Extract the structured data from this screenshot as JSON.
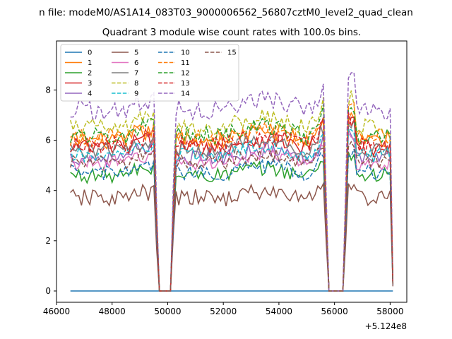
{
  "chart_data": {
    "type": "line",
    "suptitle": "n file: modeM0/AS1A14_083T03_9000006562_56807cztM0_level2_quad_clean",
    "title": "Quadrant 3 module wise count rates with 100.0s bins.",
    "xlabel": "",
    "ylabel": "",
    "x_offset_label": "+5.124e8",
    "x_offset": 512400000,
    "xlim": [
      46000,
      58600
    ],
    "ylim": [
      -0.45,
      9.95
    ],
    "xticks": [
      46000,
      48000,
      50000,
      52000,
      54000,
      56000,
      58000
    ],
    "xtick_labels": [
      "46000",
      "48000",
      "50000",
      "52000",
      "54000",
      "56000",
      "58000"
    ],
    "yticks": [
      0,
      2,
      4,
      6,
      8
    ],
    "ytick_labels": [
      "0",
      "2",
      "4",
      "6",
      "8"
    ],
    "x_range_data": [
      46500,
      58100
    ],
    "bin_size": 100,
    "gaps": [
      [
        49650,
        50200
      ],
      [
        55700,
        56400
      ]
    ],
    "grid": false,
    "legend_location": "upper left",
    "legend_columns": 4,
    "series": [
      {
        "name": "0",
        "color": "#1f77b4",
        "style": "solid",
        "level": 0.0,
        "noise": 0.0
      },
      {
        "name": "1",
        "color": "#ff7f0e",
        "style": "solid",
        "level": 6.0,
        "noise": 0.35
      },
      {
        "name": "2",
        "color": "#2ca02c",
        "style": "solid",
        "level": 4.6,
        "noise": 0.3
      },
      {
        "name": "3",
        "color": "#d62728",
        "style": "solid",
        "level": 5.7,
        "noise": 0.35
      },
      {
        "name": "4",
        "color": "#9467bd",
        "style": "solid",
        "level": 5.3,
        "noise": 0.3
      },
      {
        "name": "5",
        "color": "#8c564b",
        "style": "solid",
        "level": 3.7,
        "noise": 0.35
      },
      {
        "name": "6",
        "color": "#e377c2",
        "style": "solid",
        "level": 5.1,
        "noise": 0.3
      },
      {
        "name": "7",
        "color": "#7f7f7f",
        "style": "solid",
        "level": 5.6,
        "noise": 0.3
      },
      {
        "name": "8",
        "color": "#bcbd22",
        "style": "dashed",
        "level": 6.5,
        "noise": 0.35
      },
      {
        "name": "9",
        "color": "#17becf",
        "style": "dashed",
        "level": 5.4,
        "noise": 0.3
      },
      {
        "name": "10",
        "color": "#1f77b4",
        "style": "dashed",
        "level": 4.7,
        "noise": 0.3
      },
      {
        "name": "11",
        "color": "#ff7f0e",
        "style": "dashed",
        "level": 6.1,
        "noise": 0.35
      },
      {
        "name": "12",
        "color": "#2ca02c",
        "style": "dashed",
        "level": 6.2,
        "noise": 0.35
      },
      {
        "name": "13",
        "color": "#d62728",
        "style": "dashed",
        "level": 5.8,
        "noise": 0.35
      },
      {
        "name": "14",
        "color": "#9467bd",
        "style": "dashed",
        "level": 7.2,
        "noise": 0.4
      },
      {
        "name": "15",
        "color": "#8c564b",
        "style": "dashed",
        "level": 5.1,
        "noise": 0.3
      }
    ]
  }
}
